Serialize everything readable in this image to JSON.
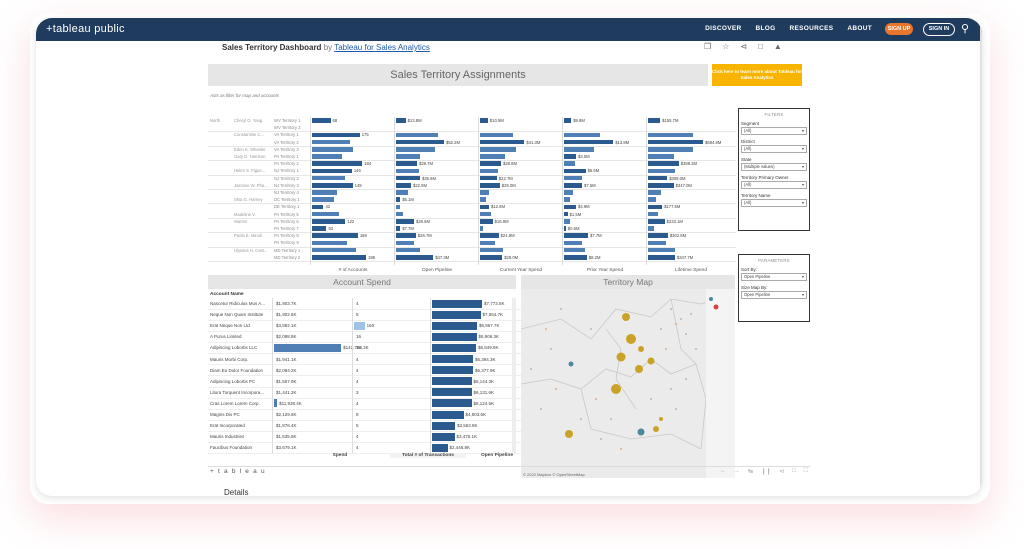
{
  "nav": {
    "logo": "+tableau public",
    "links": [
      "DISCOVER",
      "BLOG",
      "RESOURCES",
      "ABOUT"
    ],
    "signup": "SIGN UP",
    "signin": "SIGN IN"
  },
  "viz": {
    "title": "Sales Territory Dashboard",
    "by": "by",
    "author": "Tableau for Sales Analytics"
  },
  "dashboard": {
    "header": "Sales Territory Assignments",
    "cta": "Click here to learn more about Tableau for Sales Analytics",
    "note": "Acts as filter for map and accounts",
    "region": "North",
    "territory_rows": [
      {
        "owner": "Cheryl O. Yang",
        "terr": "WV Territory 1",
        "acc": 68,
        "acc_label": "68",
        "open": 0.16,
        "open_label": "$13.8M",
        "cur": 0.13,
        "cur_label": "$10.5M",
        "prior": 0.12,
        "prior_label": "$9.8M",
        "life": 0.19,
        "life_label": "$155.7M"
      },
      {
        "owner": "",
        "terr": "WV Territory 2",
        "acc": 0,
        "acc_label": "",
        "open": 0,
        "open_label": "",
        "cur": 0,
        "cur_label": "",
        "prior": 0,
        "prior_label": "",
        "life": 0,
        "life_label": ""
      },
      {
        "owner": "Constantine C...",
        "terr": "VA Territory 1",
        "acc": 175,
        "acc_label": "175",
        "open": 0.7,
        "open_label": "",
        "cur": 0.55,
        "cur_label": "",
        "prior": 0.6,
        "prior_label": "",
        "life": 0.7,
        "life_label": ""
      },
      {
        "owner": "",
        "terr": "VA Territory 2",
        "acc": 140,
        "acc_label": "",
        "open": 0.8,
        "open_label": "$52.2M",
        "cur": 0.74,
        "cur_label": "$41.3M",
        "prior": 0.82,
        "prior_label": "$13.8M",
        "life": 0.86,
        "life_label": "$684.8M"
      },
      {
        "owner": "Eden K. Wheeler",
        "terr": "VA Territory 3",
        "acc": 150,
        "acc_label": "",
        "open": 0.65,
        "open_label": "",
        "cur": 0.6,
        "cur_label": "",
        "prior": 0.5,
        "prior_label": "",
        "life": 0.7,
        "life_label": ""
      },
      {
        "owner": "Gary D. Harrison",
        "terr": "PA Territory 1",
        "acc": 110,
        "acc_label": "",
        "open": 0.4,
        "open_label": "",
        "cur": 0.42,
        "cur_label": "",
        "prior": 0.2,
        "prior_label": "$3.5M",
        "life": 0.4,
        "life_label": ""
      },
      {
        "owner": "",
        "terr": "PA Territory 2",
        "acc": 184,
        "acc_label": "184",
        "open": 0.35,
        "open_label": "$29.7M",
        "cur": 0.35,
        "cur_label": "$28.8M",
        "prior": 0.18,
        "prior_label": "",
        "life": 0.48,
        "life_label": "$388.2M"
      },
      {
        "owner": "Helen S. Figue...",
        "terr": "NJ Territory 1",
        "acc": 146,
        "acc_label": "146",
        "open": 0.38,
        "open_label": "",
        "cur": 0.3,
        "cur_label": "",
        "prior": 0.36,
        "prior_label": "$6.6M",
        "life": 0.42,
        "life_label": ""
      },
      {
        "owner": "",
        "terr": "NJ Territory 2",
        "acc": 120,
        "acc_label": "",
        "open": 0.4,
        "open_label": "$35.6M",
        "cur": 0.28,
        "cur_label": "$22.7M",
        "prior": 0.3,
        "prior_label": "",
        "life": 0.3,
        "life_label": "$309.0M"
      },
      {
        "owner": "Jasmine W. Pha...",
        "terr": "NJ Territory 3",
        "acc": 149,
        "acc_label": "149",
        "open": 0.25,
        "open_label": "$22.9M",
        "cur": 0.33,
        "cur_label": "$25.0M",
        "prior": 0.3,
        "prior_label": "$7.5M",
        "life": 0.4,
        "life_label": "$347.0M"
      },
      {
        "owner": "",
        "terr": "NJ Territory 4",
        "acc": 90,
        "acc_label": "",
        "open": 0.2,
        "open_label": "",
        "cur": 0.15,
        "cur_label": "",
        "prior": 0.15,
        "prior_label": "",
        "life": 0.2,
        "life_label": ""
      },
      {
        "owner": "Shia G. Harney",
        "terr": "DC Territory 1",
        "acc": 80,
        "acc_label": "",
        "open": 0.07,
        "open_label": "$5.1M",
        "cur": 0.1,
        "cur_label": "",
        "prior": 0.1,
        "prior_label": "",
        "life": 0.12,
        "life_label": ""
      },
      {
        "owner": "",
        "terr": "DE Territory 1",
        "acc": 42,
        "acc_label": "42",
        "open": 0.06,
        "open_label": "",
        "cur": 0.15,
        "cur_label": "$12.6M",
        "prior": 0.2,
        "prior_label": "$4.9M",
        "life": 0.22,
        "life_label": "$177.5M"
      },
      {
        "owner": "Madeline V.",
        "terr": "PA Territory 5",
        "acc": 100,
        "acc_label": "",
        "open": 0.12,
        "open_label": "",
        "cur": 0.18,
        "cur_label": "",
        "prior": 0.06,
        "prior_label": "$1.5M",
        "life": 0.15,
        "life_label": ""
      },
      {
        "owner": "Warton",
        "terr": "PA Territory 6",
        "acc": 122,
        "acc_label": "122",
        "open": 0.3,
        "open_label": "$26.5M",
        "cur": 0.21,
        "cur_label": "$16.9M",
        "prior": 0.1,
        "prior_label": "",
        "life": 0.26,
        "life_label": "$233.1M"
      },
      {
        "owner": "",
        "terr": "PA Territory 7",
        "acc": 53,
        "acc_label": "53",
        "open": 0.07,
        "open_label": "$7.7M",
        "cur": 0.05,
        "cur_label": "",
        "prior": 0.03,
        "prior_label": "$0.6M",
        "life": 0.1,
        "life_label": ""
      },
      {
        "owner": "Paola E. Minoli",
        "terr": "PA Territory 8",
        "acc": 168,
        "acc_label": "168",
        "open": 0.33,
        "open_label": "$26.7M",
        "cur": 0.31,
        "cur_label": "$24.8M",
        "prior": 0.4,
        "prior_label": "$7.7M",
        "life": 0.31,
        "life_label": "$302.8M"
      },
      {
        "owner": "",
        "terr": "PA Territory 9",
        "acc": 130,
        "acc_label": "",
        "open": 0.3,
        "open_label": "",
        "cur": 0.25,
        "cur_label": "",
        "prior": 0.3,
        "prior_label": "",
        "life": 0.28,
        "life_label": ""
      },
      {
        "owner": "Ulysses H. Cast...",
        "terr": "MD Territory 1",
        "acc": 160,
        "acc_label": "",
        "open": 0.4,
        "open_label": "",
        "cur": 0.38,
        "cur_label": "",
        "prior": 0.35,
        "prior_label": "",
        "life": 0.42,
        "life_label": ""
      },
      {
        "owner": "",
        "terr": "MD Territory 2",
        "acc": 198,
        "acc_label": "198",
        "open": 0.62,
        "open_label": "$47.3M",
        "cur": 0.37,
        "cur_label": "$29.0M",
        "prior": 0.38,
        "prior_label": "$8.2M",
        "life": 0.42,
        "life_label": "$347.7M"
      }
    ],
    "measures": [
      "# of Accounts",
      "Open Pipeline",
      "Current Year Spend",
      "Prior Year Spend",
      "Lifetime Spend"
    ],
    "account_spend": {
      "title": "Account Spend",
      "header": "Account Name",
      "rows": [
        {
          "name": "Nascetur Ridiculus Mus A...",
          "spend": "$1,903.7K",
          "spend_frac": 0,
          "tx": "4",
          "tx_frac": 0,
          "open": "$7,773.6K",
          "open_frac": 1.0
        },
        {
          "name": "Neque Non Quam Institute",
          "spend": "$1,902.6K",
          "spend_frac": 0,
          "tx": "5",
          "tx_frac": 0,
          "open": "$7,554.7K",
          "open_frac": 0.97
        },
        {
          "name": "Erat Neque Non Ltd",
          "spend": "$3,882.1K",
          "spend_frac": 0,
          "tx": "160",
          "tx_frac": 0.14,
          "open": "$6,967.7K",
          "open_frac": 0.9
        },
        {
          "name": "A Purus Limited",
          "spend": "$2,098.8K",
          "spend_frac": 0,
          "tx": "16",
          "tx_frac": 0,
          "open": "$6,906.3K",
          "open_frac": 0.89
        },
        {
          "name": "Adipiscing Lobortis LLC",
          "spend": "$142,784.3K",
          "spend_frac": 0.86,
          "tx": "15",
          "tx_frac": 0,
          "open": "$6,849.9K",
          "open_frac": 0.88
        },
        {
          "name": "Mauris Morbi Corp.",
          "spend": "$1,941.1K",
          "spend_frac": 0,
          "tx": "4",
          "tx_frac": 0,
          "open": "$6,394.3K",
          "open_frac": 0.82
        },
        {
          "name": "Diam Eu Dolor Foundation",
          "spend": "$2,094.2K",
          "spend_frac": 0,
          "tx": "4",
          "tx_frac": 0,
          "open": "$6,377.9K",
          "open_frac": 0.82
        },
        {
          "name": "Adipiscing Lobortis PC",
          "spend": "$1,557.9K",
          "spend_frac": 0,
          "tx": "4",
          "tx_frac": 0,
          "open": "$6,144.3K",
          "open_frac": 0.79
        },
        {
          "name": "Litora Torquent Incorpora...",
          "spend": "$1,441.2K",
          "spend_frac": 0,
          "tx": "3",
          "tx_frac": 0,
          "open": "$6,131.6K",
          "open_frac": 0.79
        },
        {
          "name": "Cras Lorem Lorem Corp.",
          "spend": "$11,938.4K",
          "spend_frac": 0.04,
          "tx": "4",
          "tx_frac": 0,
          "open": "$6,124.5K",
          "open_frac": 0.79
        },
        {
          "name": "Magnis Dis PC",
          "spend": "$2,129.8K",
          "spend_frac": 0,
          "tx": "8",
          "tx_frac": 0,
          "open": "$4,903.6K",
          "open_frac": 0.63
        },
        {
          "name": "Erat Incorporated",
          "spend": "$1,876.4K",
          "spend_frac": 0,
          "tx": "5",
          "tx_frac": 0,
          "open": "$3,563.8K",
          "open_frac": 0.46
        },
        {
          "name": "Mauris Industries",
          "spend": "$1,535.8K",
          "spend_frac": 0,
          "tx": "4",
          "tx_frac": 0,
          "open": "$3,475.1K",
          "open_frac": 0.45
        },
        {
          "name": "Faucibus Foundation",
          "spend": "$3,679.1K",
          "spend_frac": 0,
          "tx": "4",
          "tx_frac": 0,
          "open": "$2,446.8K",
          "open_frac": 0.31
        }
      ],
      "footer": [
        "Spend",
        "Total # of Transactions",
        "Open Pipeline"
      ]
    },
    "map": {
      "title": "Territory Map",
      "credit": "© 2022 Mapbox  © OpenStreetMap"
    },
    "filters": {
      "title": "FILTERS",
      "items": [
        {
          "label": "Segment",
          "value": "(All)"
        },
        {
          "label": "District",
          "value": "(All)"
        },
        {
          "label": "State",
          "value": "(Multiple values)"
        },
        {
          "label": "Territory Primary Owner",
          "value": "(All)"
        },
        {
          "label": "Territory Name",
          "value": "(All)"
        }
      ]
    },
    "parameters": {
      "title": "PARAMETERS",
      "items": [
        {
          "label": "Sort By:",
          "value": "Open Pipeline"
        },
        {
          "label": "Size Map By:",
          "value": "Open Pipeline"
        }
      ]
    }
  },
  "footer": {
    "logo": "+ t a b l e a u",
    "details": "Details"
  },
  "colors": {
    "navy": "#1f3b5e",
    "orange": "#e8762c",
    "cta": "#f7b500",
    "bar_dark": "#2b5a8f",
    "bar_mid": "#4f7fb5",
    "bar_light": "#9ec3e6"
  }
}
